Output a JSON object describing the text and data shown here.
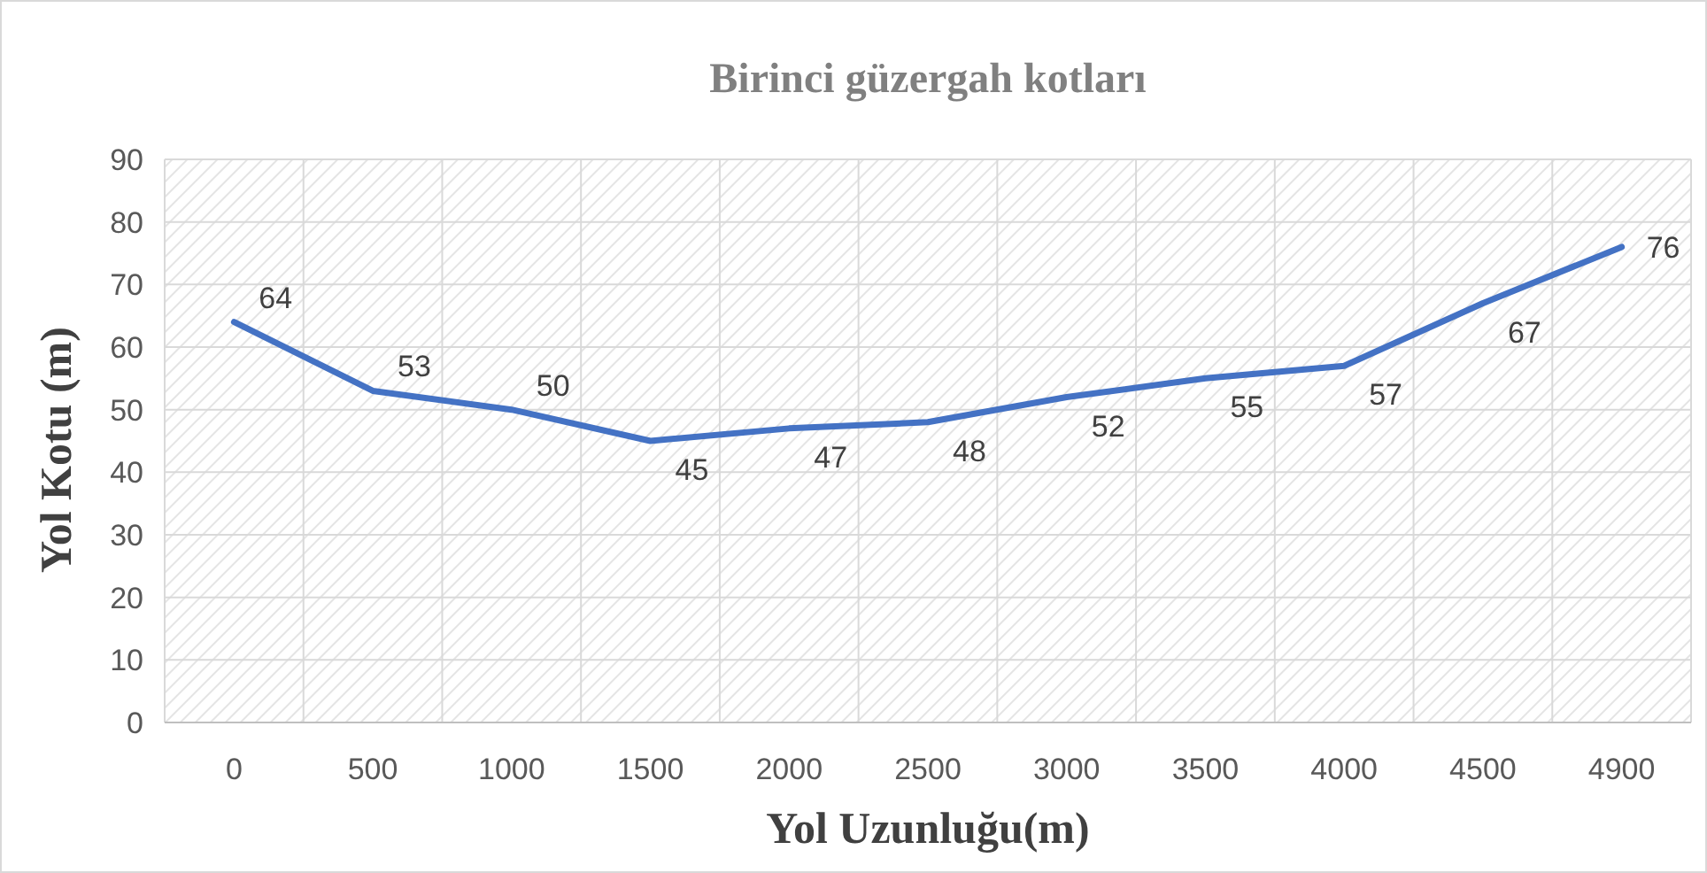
{
  "chart_data": {
    "type": "line",
    "title": "Birinci güzergah kotları",
    "xlabel": "Yol Uzunluğu(m)",
    "ylabel": "Yol Kotu (m)",
    "categories": [
      "0",
      "500",
      "1000",
      "1500",
      "2000",
      "2500",
      "3000",
      "3500",
      "4000",
      "4500",
      "4900"
    ],
    "series": [
      {
        "color": "#4472c4",
        "values": [
          64,
          53,
          50,
          45,
          47,
          48,
          52,
          55,
          57,
          67,
          76
        ]
      }
    ],
    "ylim": [
      0,
      90
    ],
    "yticks": [
      0,
      10,
      20,
      30,
      40,
      50,
      60,
      70,
      80,
      90
    ],
    "grid": true,
    "data_labels": true,
    "marker": "none",
    "line_style": "solid"
  }
}
